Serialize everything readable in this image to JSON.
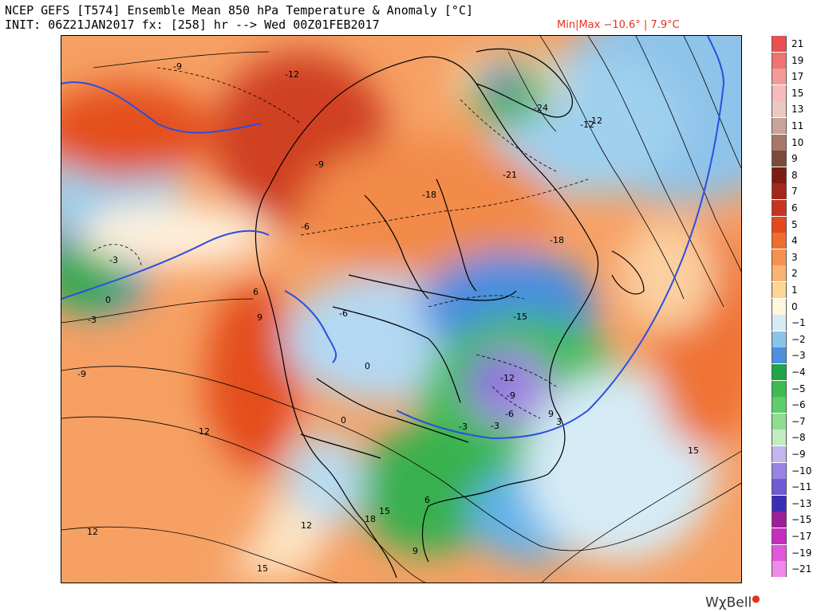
{
  "header": {
    "title_line1": "NCEP GEFS [T574] Ensemble Mean 850 hPa Temperature & Anomaly [°C]",
    "title_line2": "INIT: 06Z21JAN2017 fx: [258] hr --> Wed 00Z01FEB2017",
    "minmax": "Min|Max −10.6° | 7.9°C"
  },
  "colorbar": {
    "labels": [
      "21",
      "19",
      "17",
      "15",
      "13",
      "11",
      "10",
      "9",
      "8",
      "7",
      "6",
      "5",
      "4",
      "3",
      "2",
      "1",
      "0",
      "−1",
      "−2",
      "−3",
      "−4",
      "−5",
      "−6",
      "−7",
      "−8",
      "−9",
      "−10",
      "−11",
      "−13",
      "−15",
      "−17",
      "−19",
      "−21"
    ],
    "colors": [
      "#e8514f",
      "#ee7470",
      "#f39b99",
      "#f6bcbc",
      "#e9c9c3",
      "#c8a49a",
      "#a7786a",
      "#7b4a3c",
      "#7a1d12",
      "#a3281c",
      "#c8321f",
      "#e34a1d",
      "#ef6e2e",
      "#f69250",
      "#f9b471",
      "#fdd595",
      "#fff6dc",
      "#d5ecf5",
      "#8cc3eb",
      "#4f8fe0",
      "#1fa547",
      "#3cbc4f",
      "#5ecd6a",
      "#8fde90",
      "#c2ecc0",
      "#c5b5ef",
      "#9a84e3",
      "#6e5bd5",
      "#3a2fb3",
      "#9a1f98",
      "#c42fbf",
      "#e257d9",
      "#f089ea"
    ]
  },
  "map": {
    "contour_labels": [
      "-9",
      "-12",
      "-9",
      "-6",
      "-3",
      "0",
      "-3",
      "-9",
      "6",
      "9",
      "-6",
      "-12",
      "-18",
      "-24",
      "-21",
      "-12",
      "-18",
      "-15",
      "-12",
      "-9",
      "-6",
      "-3",
      "0",
      "3",
      "0",
      "6",
      "12",
      "9",
      "12",
      "15",
      "18",
      "15",
      "12",
      "15",
      "9",
      "-3"
    ]
  },
  "branding": {
    "logo_text": "WχBell"
  }
}
